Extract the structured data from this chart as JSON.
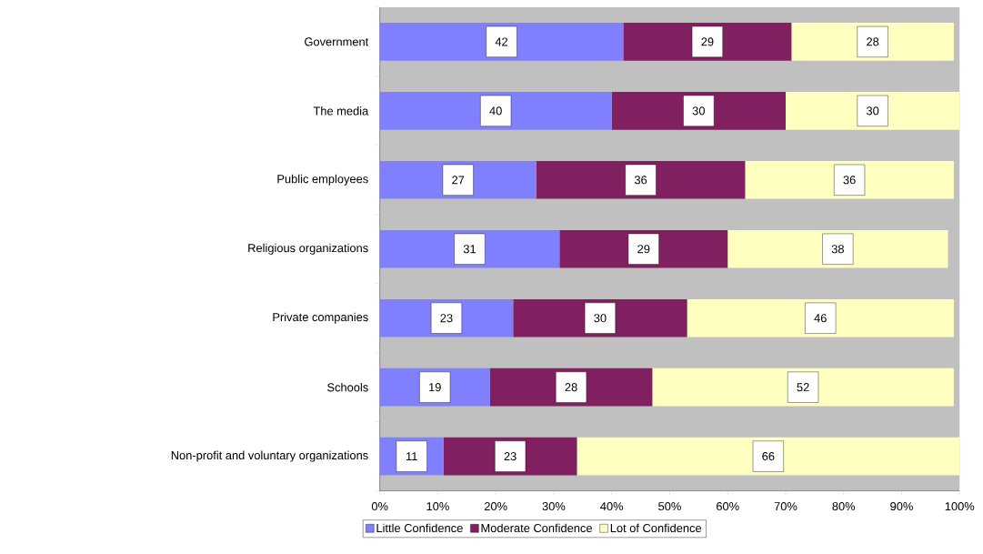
{
  "chart_data": {
    "type": "bar",
    "orientation": "horizontal",
    "stacked": true,
    "data_labels": true,
    "legend": "bottom",
    "categories": [
      "Government",
      "The media",
      "Public employees",
      "Religious organizations",
      "Private companies",
      "Schools",
      "Non-profit and voluntary organizations"
    ],
    "series": [
      {
        "name": "Little Confidence",
        "color": "#8080ff",
        "values": [
          42,
          40,
          27,
          31,
          23,
          19,
          11
        ]
      },
      {
        "name": "Moderate Confidence",
        "color": "#802060",
        "values": [
          29,
          30,
          36,
          29,
          30,
          28,
          23
        ]
      },
      {
        "name": "Lot of Confidence",
        "color": "#ffffc0",
        "values": [
          28,
          30,
          36,
          38,
          46,
          52,
          66
        ]
      }
    ],
    "xlim": [
      0,
      100
    ],
    "xticks": [
      {
        "value": 0,
        "label": "0%"
      },
      {
        "value": 10,
        "label": "10%"
      },
      {
        "value": 20,
        "label": "20%"
      },
      {
        "value": 30,
        "label": "30%"
      },
      {
        "value": 40,
        "label": "40%"
      },
      {
        "value": 50,
        "label": "50%"
      },
      {
        "value": 60,
        "label": "60%"
      },
      {
        "value": 70,
        "label": "70%"
      },
      {
        "value": 80,
        "label": "80%"
      },
      {
        "value": 90,
        "label": "90%"
      },
      {
        "value": 100,
        "label": "100%"
      }
    ]
  }
}
